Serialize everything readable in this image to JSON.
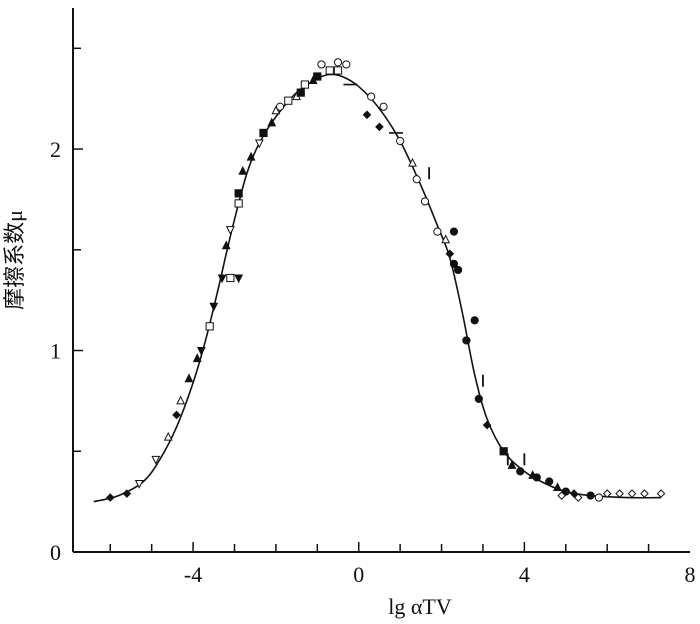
{
  "chart_data": {
    "type": "scatter",
    "title": "",
    "xlabel": "lg αTV",
    "ylabel": "摩擦系数μ",
    "xlim": [
      -6.9,
      8
    ],
    "ylim": [
      0,
      2.7
    ],
    "x_ticks": [
      "-4",
      "0",
      "4",
      "8"
    ],
    "x_tick_values": [
      -4,
      0,
      4,
      8
    ],
    "y_ticks": [
      "0",
      "1",
      "2"
    ],
    "y_tick_values": [
      0,
      1,
      2
    ],
    "grid": false,
    "legend": "none",
    "series": [
      {
        "kind": "line",
        "color": "#111111",
        "points": [
          [
            -6.4,
            0.25
          ],
          [
            -5.8,
            0.28
          ],
          [
            -5.2,
            0.35
          ],
          [
            -4.8,
            0.46
          ],
          [
            -4.4,
            0.62
          ],
          [
            -4.0,
            0.84
          ],
          [
            -3.7,
            1.05
          ],
          [
            -3.4,
            1.3
          ],
          [
            -3.2,
            1.48
          ],
          [
            -3.0,
            1.65
          ],
          [
            -2.7,
            1.88
          ],
          [
            -2.4,
            2.03
          ],
          [
            -2.0,
            2.16
          ],
          [
            -1.5,
            2.28
          ],
          [
            -1.0,
            2.35
          ],
          [
            -0.7,
            2.37
          ],
          [
            -0.4,
            2.36
          ],
          [
            0.0,
            2.31
          ],
          [
            0.5,
            2.2
          ],
          [
            1.0,
            2.04
          ],
          [
            1.5,
            1.82
          ],
          [
            1.9,
            1.62
          ],
          [
            2.2,
            1.46
          ],
          [
            2.5,
            1.19
          ],
          [
            2.8,
            0.88
          ],
          [
            3.1,
            0.66
          ],
          [
            3.5,
            0.5
          ],
          [
            4.0,
            0.4
          ],
          [
            4.5,
            0.34
          ],
          [
            5.0,
            0.3
          ],
          [
            5.6,
            0.28
          ],
          [
            6.5,
            0.27
          ],
          [
            7.3,
            0.27
          ]
        ]
      },
      {
        "kind": "points",
        "color": "#111111",
        "points": [
          {
            "x": -6.0,
            "y": 0.27,
            "m": "diamond-filled"
          },
          {
            "x": -5.6,
            "y": 0.29,
            "m": "diamond-filled"
          },
          {
            "x": -5.3,
            "y": 0.34,
            "m": "triangle-down-open"
          },
          {
            "x": -4.9,
            "y": 0.46,
            "m": "triangle-down-open"
          },
          {
            "x": -4.6,
            "y": 0.57,
            "m": "triangle-up-open"
          },
          {
            "x": -4.4,
            "y": 0.68,
            "m": "diamond-filled"
          },
          {
            "x": -4.3,
            "y": 0.75,
            "m": "triangle-up-open"
          },
          {
            "x": -4.1,
            "y": 0.86,
            "m": "triangle-up-filled"
          },
          {
            "x": -3.9,
            "y": 0.96,
            "m": "triangle-up-filled"
          },
          {
            "x": -3.8,
            "y": 1.0,
            "m": "triangle-down-filled"
          },
          {
            "x": -3.6,
            "y": 1.12,
            "m": "square-open"
          },
          {
            "x": -3.5,
            "y": 1.22,
            "m": "triangle-down-filled"
          },
          {
            "x": -3.3,
            "y": 1.36,
            "m": "triangle-down-filled"
          },
          {
            "x": -3.1,
            "y": 1.36,
            "m": "square-open"
          },
          {
            "x": -2.9,
            "y": 1.36,
            "m": "triangle-down-filled"
          },
          {
            "x": -3.2,
            "y": 1.52,
            "m": "triangle-up-filled"
          },
          {
            "x": -3.1,
            "y": 1.6,
            "m": "triangle-down-open"
          },
          {
            "x": -2.9,
            "y": 1.73,
            "m": "square-open"
          },
          {
            "x": -2.9,
            "y": 1.78,
            "m": "square-filled"
          },
          {
            "x": -2.8,
            "y": 1.89,
            "m": "triangle-up-filled"
          },
          {
            "x": -2.6,
            "y": 1.96,
            "m": "triangle-up-filled"
          },
          {
            "x": -2.4,
            "y": 2.03,
            "m": "triangle-down-open"
          },
          {
            "x": -2.3,
            "y": 2.08,
            "m": "square-filled"
          },
          {
            "x": -2.1,
            "y": 2.13,
            "m": "triangle-up-filled"
          },
          {
            "x": -2.0,
            "y": 2.19,
            "m": "triangle-up-open"
          },
          {
            "x": -1.9,
            "y": 2.21,
            "m": "circle-open"
          },
          {
            "x": -1.7,
            "y": 2.24,
            "m": "square-open"
          },
          {
            "x": -1.5,
            "y": 2.26,
            "m": "triangle-up-open"
          },
          {
            "x": -1.4,
            "y": 2.28,
            "m": "square-filled"
          },
          {
            "x": -1.3,
            "y": 2.32,
            "m": "square-open"
          },
          {
            "x": -1.1,
            "y": 2.34,
            "m": "triangle-up-filled"
          },
          {
            "x": -1.0,
            "y": 2.36,
            "m": "square-filled"
          },
          {
            "x": -0.9,
            "y": 2.42,
            "m": "circle-open"
          },
          {
            "x": -0.7,
            "y": 2.39,
            "m": "square-open"
          },
          {
            "x": -0.5,
            "y": 2.39,
            "m": "square-open"
          },
          {
            "x": -0.5,
            "y": 2.43,
            "m": "circle-open"
          },
          {
            "x": -0.3,
            "y": 2.42,
            "m": "circle-open"
          },
          {
            "x": -0.2,
            "y": 2.32,
            "m": "dash"
          },
          {
            "x": 0.3,
            "y": 2.26,
            "m": "circle-open"
          },
          {
            "x": 0.6,
            "y": 2.21,
            "m": "circle-open"
          },
          {
            "x": 0.2,
            "y": 2.17,
            "m": "diamond-filled"
          },
          {
            "x": 0.5,
            "y": 2.11,
            "m": "diamond-filled"
          },
          {
            "x": 0.9,
            "y": 2.08,
            "m": "dash"
          },
          {
            "x": 1.0,
            "y": 2.04,
            "m": "circle-open"
          },
          {
            "x": 1.3,
            "y": 1.93,
            "m": "triangle-up-open"
          },
          {
            "x": 1.7,
            "y": 1.88,
            "m": "vbar"
          },
          {
            "x": 1.4,
            "y": 1.85,
            "m": "circle-open"
          },
          {
            "x": 1.6,
            "y": 1.74,
            "m": "circle-open"
          },
          {
            "x": 1.9,
            "y": 1.59,
            "m": "circle-open"
          },
          {
            "x": 2.1,
            "y": 1.55,
            "m": "triangle-up-open"
          },
          {
            "x": 2.3,
            "y": 1.59,
            "m": "circle-filled"
          },
          {
            "x": 2.2,
            "y": 1.48,
            "m": "diamond-filled"
          },
          {
            "x": 2.3,
            "y": 1.43,
            "m": "circle-filled"
          },
          {
            "x": 2.4,
            "y": 1.4,
            "m": "circle-filled"
          },
          {
            "x": 2.8,
            "y": 1.15,
            "m": "circle-filled"
          },
          {
            "x": 2.6,
            "y": 1.05,
            "m": "circle-filled"
          },
          {
            "x": 3.0,
            "y": 0.85,
            "m": "vbar"
          },
          {
            "x": 2.9,
            "y": 0.76,
            "m": "circle-filled"
          },
          {
            "x": 3.1,
            "y": 0.63,
            "m": "diamond-filled"
          },
          {
            "x": 3.5,
            "y": 0.5,
            "m": "square-filled"
          },
          {
            "x": 3.6,
            "y": 0.46,
            "m": "vbar"
          },
          {
            "x": 3.7,
            "y": 0.43,
            "m": "triangle-up-filled"
          },
          {
            "x": 3.9,
            "y": 0.4,
            "m": "circle-filled"
          },
          {
            "x": 4.0,
            "y": 0.46,
            "m": "vbar"
          },
          {
            "x": 4.2,
            "y": 0.38,
            "m": "triangle-up-filled"
          },
          {
            "x": 4.3,
            "y": 0.37,
            "m": "circle-filled"
          },
          {
            "x": 4.6,
            "y": 0.35,
            "m": "circle-filled"
          },
          {
            "x": 4.8,
            "y": 0.32,
            "m": "triangle-up-filled"
          },
          {
            "x": 5.0,
            "y": 0.3,
            "m": "circle-filled"
          },
          {
            "x": 5.2,
            "y": 0.29,
            "m": "diamond-filled"
          },
          {
            "x": 5.6,
            "y": 0.28,
            "m": "circle-filled"
          },
          {
            "x": 5.8,
            "y": 0.27,
            "m": "circle-open"
          },
          {
            "x": 4.9,
            "y": 0.28,
            "m": "diamond-open"
          },
          {
            "x": 5.3,
            "y": 0.27,
            "m": "diamond-open"
          },
          {
            "x": 6.0,
            "y": 0.29,
            "m": "diamond-open"
          },
          {
            "x": 6.3,
            "y": 0.29,
            "m": "diamond-open"
          },
          {
            "x": 6.6,
            "y": 0.29,
            "m": "diamond-open"
          },
          {
            "x": 6.9,
            "y": 0.29,
            "m": "diamond-open"
          },
          {
            "x": 7.3,
            "y": 0.29,
            "m": "diamond-open"
          }
        ]
      }
    ]
  }
}
